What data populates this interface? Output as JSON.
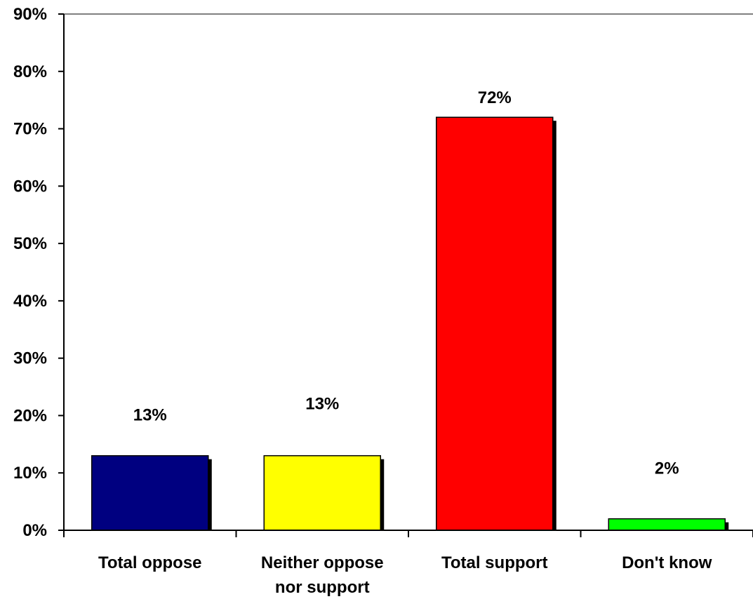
{
  "chart_data": {
    "type": "bar",
    "title": "",
    "xlabel": "",
    "ylabel": "",
    "categories": [
      [
        "Total oppose"
      ],
      [
        "Neither oppose",
        "nor support"
      ],
      [
        "Total support"
      ],
      [
        "Don't know"
      ]
    ],
    "values": [
      13,
      13,
      72,
      2
    ],
    "data_labels": [
      "13%",
      "13%",
      "72%",
      "2%"
    ],
    "colors": [
      "#000080",
      "#ffff00",
      "#ff0000",
      "#00ff00"
    ],
    "ylim": [
      0,
      90
    ],
    "yticks": [
      0,
      10,
      20,
      30,
      40,
      50,
      60,
      70,
      80,
      90
    ],
    "ytick_labels": [
      "0%",
      "10%",
      "20%",
      "30%",
      "40%",
      "50%",
      "60%",
      "70%",
      "80%",
      "90%"
    ],
    "grid": false,
    "legend": "none",
    "bar_shadow": true
  }
}
